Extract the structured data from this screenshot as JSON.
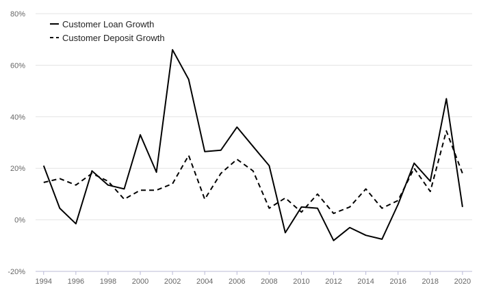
{
  "chart_data": {
    "type": "line",
    "title": "",
    "xlabel": "",
    "ylabel": "",
    "x": [
      1994,
      1995,
      1996,
      1997,
      1998,
      1999,
      2000,
      2001,
      2002,
      2003,
      2004,
      2005,
      2006,
      2007,
      2008,
      2009,
      2010,
      2011,
      2012,
      2013,
      2014,
      2015,
      2016,
      2017,
      2018,
      2019,
      2020
    ],
    "x_ticks": [
      "1994",
      "1996",
      "1998",
      "2000",
      "2002",
      "2004",
      "2006",
      "2008",
      "2010",
      "2012",
      "2014",
      "2016",
      "2018",
      "2020"
    ],
    "y_ticks": [
      "80%",
      "60%",
      "40%",
      "20%",
      "0%",
      "-20%"
    ],
    "ylim": [
      -20,
      80
    ],
    "xlim": [
      1993.5,
      2020.6
    ],
    "grid": "horizontal",
    "legend_position": "top-left",
    "series": [
      {
        "name": "Customer Loan Growth",
        "style": "solid",
        "color": "#000000",
        "values": [
          21,
          4.5,
          -1.5,
          19,
          13.5,
          12,
          33,
          18.5,
          66,
          54.5,
          26.5,
          27,
          36,
          28.5,
          21,
          -5,
          5,
          4.5,
          -8,
          -3,
          -6,
          -7.5,
          6,
          22,
          15,
          47,
          5
        ]
      },
      {
        "name": "Customer Deposit Growth",
        "style": "dashed",
        "color": "#000000",
        "values": [
          14.5,
          16,
          13.5,
          18,
          15,
          8,
          11.5,
          11.5,
          14,
          25,
          8,
          18,
          23.5,
          19,
          4.5,
          8.5,
          3,
          10,
          2.5,
          5,
          12,
          4.5,
          7.5,
          20,
          11,
          34.5,
          18
        ]
      }
    ]
  }
}
